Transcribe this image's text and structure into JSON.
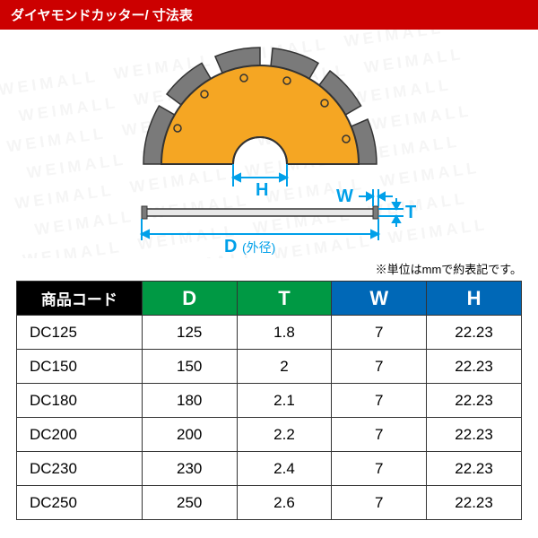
{
  "header": {
    "title": "ダイヤモンドカッター/ 寸法表"
  },
  "watermark": "WEIMALL",
  "diagram": {
    "labels": {
      "H": "H",
      "W": "W",
      "T": "T",
      "D": "D",
      "D_suffix": "(外径)"
    },
    "colors": {
      "blade_fill": "#f5a623",
      "segment_fill": "#7a7a7a",
      "line": "#333333",
      "arrow": "#00a0e9"
    }
  },
  "note": "※単位はmmで約表記です。",
  "table": {
    "headers": {
      "code": "商品コード",
      "D": "D",
      "T": "T",
      "W": "W",
      "H": "H"
    },
    "header_colors": {
      "code": "#000000",
      "DT": "#009944",
      "WH": "#0068b7"
    },
    "rows": [
      {
        "code": "DC125",
        "D": "125",
        "T": "1.8",
        "W": "7",
        "H": "22.23"
      },
      {
        "code": "DC150",
        "D": "150",
        "T": "2",
        "W": "7",
        "H": "22.23"
      },
      {
        "code": "DC180",
        "D": "180",
        "T": "2.1",
        "W": "7",
        "H": "22.23"
      },
      {
        "code": "DC200",
        "D": "200",
        "T": "2.2",
        "W": "7",
        "H": "22.23"
      },
      {
        "code": "DC230",
        "D": "230",
        "T": "2.4",
        "W": "7",
        "H": "22.23"
      },
      {
        "code": "DC250",
        "D": "250",
        "T": "2.6",
        "W": "7",
        "H": "22.23"
      }
    ]
  }
}
